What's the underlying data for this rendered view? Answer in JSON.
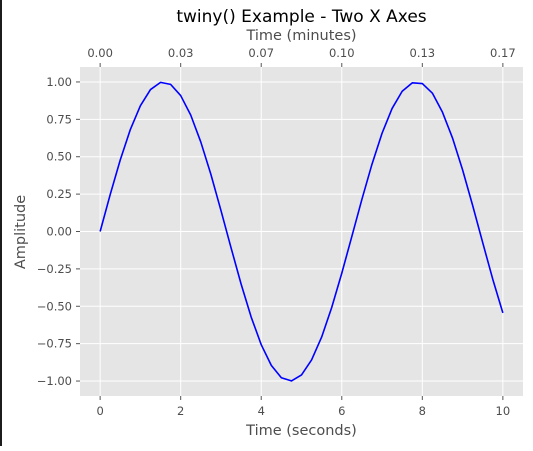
{
  "chart_data": {
    "type": "line",
    "title": "twiny() Example - Two X Axes",
    "xlabel": "Time (seconds)",
    "ylabel": "Amplitude",
    "x2label": "Time (minutes)",
    "xlim": [
      -0.5,
      10.5
    ],
    "ylim": [
      -1.1,
      1.1
    ],
    "x_ticks": [
      0,
      2,
      4,
      6,
      8,
      10
    ],
    "x_tick_labels": [
      "0",
      "2",
      "4",
      "6",
      "8",
      "10"
    ],
    "y_ticks": [
      1.0,
      0.75,
      0.5,
      0.25,
      0.0,
      -0.25,
      -0.5,
      -0.75,
      -1.0
    ],
    "y_tick_labels": [
      "1.00",
      "0.75",
      "0.50",
      "0.25",
      "0.00",
      "−0.25",
      "−0.50",
      "−0.75",
      "−1.00"
    ],
    "x2_tick_labels": [
      "0.00",
      "0.03",
      "0.07",
      "0.10",
      "0.13",
      "0.17"
    ],
    "grid": true,
    "series": [
      {
        "color": "#0000ff",
        "x": [
          0,
          0.25,
          0.5,
          0.75,
          1.0,
          1.25,
          1.5,
          1.75,
          2.0,
          2.25,
          2.5,
          2.75,
          3.0,
          3.25,
          3.5,
          3.75,
          4.0,
          4.25,
          4.5,
          4.75,
          5.0,
          5.25,
          5.5,
          5.75,
          6.0,
          6.25,
          6.5,
          6.75,
          7.0,
          7.25,
          7.5,
          7.75,
          8.0,
          8.25,
          8.5,
          8.75,
          9.0,
          9.25,
          9.5,
          9.75,
          10.0
        ],
        "y": [
          0.0,
          0.247,
          0.479,
          0.682,
          0.841,
          0.949,
          0.997,
          0.984,
          0.909,
          0.778,
          0.598,
          0.382,
          0.141,
          -0.108,
          -0.351,
          -0.572,
          -0.757,
          -0.895,
          -0.978,
          -0.999,
          -0.959,
          -0.859,
          -0.706,
          -0.508,
          -0.279,
          -0.033,
          0.215,
          0.45,
          0.657,
          0.823,
          0.938,
          0.994,
          0.989,
          0.925,
          0.798,
          0.625,
          0.412,
          0.174,
          -0.075,
          -0.32,
          -0.544
        ]
      }
    ]
  },
  "colors": {
    "plot_background": "#e5e5e5",
    "grid": "#ffffff",
    "line": "#0000ff"
  }
}
